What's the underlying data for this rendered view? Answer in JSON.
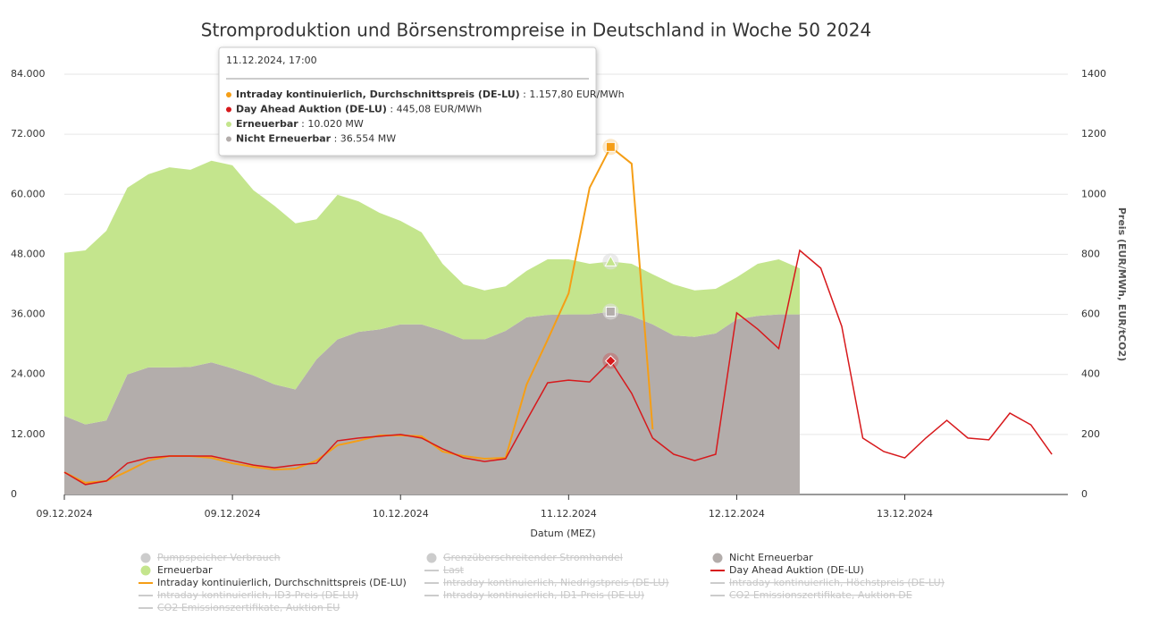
{
  "chart_data": {
    "type": "stacked-area-line",
    "title": "Stromproduktion und Börsenstrompreise in Deutschland in Woche 50 2024",
    "x_label": "Datum (MEZ)",
    "y2_label": "Preis (EUR/MWh, EUR/tCO2)",
    "x": [
      0,
      0.125,
      0.25,
      0.375,
      0.5,
      0.625,
      0.75,
      0.875,
      1,
      1.125,
      1.25,
      1.375,
      1.5,
      1.625,
      1.75,
      1.875,
      2,
      2.125,
      2.25,
      2.375,
      2.5,
      2.625,
      2.75,
      2.875,
      3,
      3.125,
      3.25,
      3.375,
      3.5,
      3.625,
      3.75,
      3.875,
      4,
      4.125,
      4.25,
      4.375,
      4.5,
      4.625,
      4.75,
      4.875,
      5,
      5.125,
      5.25,
      5.375,
      5.5,
      5.625,
      5.75,
      5.875
    ],
    "xlim": [
      0,
      5.97
    ],
    "xticks": [
      {
        "value": 0,
        "label": "09.12.2024"
      },
      {
        "value": 1,
        "label": "09.12.2024"
      },
      {
        "value": 2,
        "label": "10.12.2024"
      },
      {
        "value": 3,
        "label": "11.12.2024"
      },
      {
        "value": 4,
        "label": "12.12.2024"
      },
      {
        "value": 5,
        "label": "13.12.2024"
      }
    ],
    "ylim": [
      0,
      84000
    ],
    "yticks": [
      {
        "value": 0,
        "label": "0"
      },
      {
        "value": 12000,
        "label": "12.000"
      },
      {
        "value": 24000,
        "label": "24.000"
      },
      {
        "value": 36000,
        "label": "36.000"
      },
      {
        "value": 48000,
        "label": "48.000"
      },
      {
        "value": 60000,
        "label": "60.000"
      },
      {
        "value": 72000,
        "label": "72.000"
      },
      {
        "value": 84000,
        "label": "84.000"
      }
    ],
    "y2lim": [
      0,
      1400
    ],
    "y2ticks": [
      0,
      200,
      400,
      600,
      800,
      1000,
      1200,
      1400
    ],
    "grid": true,
    "series": [
      {
        "name": "Nicht Erneuerbar",
        "color": "#b3adab",
        "stack": true,
        "values": [
          15700,
          14000,
          14800,
          24000,
          25400,
          25400,
          25500,
          26400,
          25200,
          23800,
          22000,
          21000,
          27000,
          31000,
          32500,
          33000,
          34000,
          34000,
          32700,
          31000,
          31000,
          32700,
          35400,
          35900,
          36000,
          36000,
          36554,
          35700,
          34000,
          31800,
          31500,
          32200,
          35000,
          35700,
          36000,
          36000,
          null,
          null,
          null,
          null,
          null,
          null,
          null,
          null,
          null,
          null,
          null,
          null
        ]
      },
      {
        "name": "Erneuerbar",
        "color": "#c4e58d",
        "stack": true,
        "values": [
          32600,
          34800,
          37900,
          37300,
          38600,
          40000,
          39400,
          40300,
          40600,
          37000,
          35700,
          33200,
          28000,
          28900,
          26100,
          23300,
          20700,
          18400,
          13400,
          11000,
          9800,
          8900,
          9300,
          11100,
          11000,
          10100,
          10020,
          10400,
          10000,
          10200,
          9300,
          8900,
          8400,
          10400,
          11000,
          9200,
          null,
          null,
          null,
          null,
          null,
          null,
          null,
          null,
          null,
          null,
          null,
          null
        ]
      },
      {
        "name": "Intraday kontinuierlich, Durchschnittspreis (DE-LU)",
        "color": "#f59e16",
        "axis": "y2",
        "values": [
          74,
          39,
          45,
          77,
          113,
          128,
          128,
          122,
          104,
          92,
          83,
          86,
          113,
          164,
          179,
          197,
          197,
          194,
          143,
          128,
          119,
          122,
          366,
          515,
          670,
          1022,
          1157.8,
          1102,
          217,
          null,
          null,
          null,
          null,
          null,
          null,
          null,
          null,
          null,
          null,
          null,
          null,
          null,
          null,
          null,
          null,
          null,
          null,
          null
        ]
      },
      {
        "name": "Day Ahead Auktion (DE-LU)",
        "color": "#d7191c",
        "axis": "y2",
        "values": [
          74,
          33,
          45,
          104,
          122,
          128,
          128,
          128,
          113,
          98,
          89,
          98,
          104,
          179,
          188,
          194,
          200,
          188,
          152,
          122,
          110,
          119,
          247,
          372,
          381,
          375,
          445.08,
          337,
          188,
          134,
          113,
          134,
          605,
          551,
          486,
          813,
          754,
          560,
          188,
          143,
          122,
          188,
          247,
          188,
          182,
          271,
          232,
          134
        ]
      }
    ],
    "hidden_series": [
      {
        "name": "Pumpspeicher Verbrauch",
        "symbol": "circle"
      },
      {
        "name": "Grenzüberschreitender Stromhandel",
        "symbol": "circle"
      },
      {
        "name": "Last",
        "symbol": "line"
      },
      {
        "name": "Intraday kontinuierlich, Niedrigstpreis (DE-LU)",
        "symbol": "line"
      },
      {
        "name": "Intraday kontinuierlich, Höchstpreis (DE-LU)",
        "symbol": "line"
      },
      {
        "name": "Intraday kontinuierlich, ID3-Preis (DE-LU)",
        "symbol": "line"
      },
      {
        "name": "Intraday kontinuierlich, ID1-Preis (DE-LU)",
        "symbol": "line"
      },
      {
        "name": "CO2 Emissionszertifikate, Auktion DE",
        "symbol": "line"
      },
      {
        "name": "CO2 Emissionszertifikate, Auktion EU",
        "symbol": "line"
      }
    ],
    "tooltip": {
      "title": "11.12.2024, 17:00",
      "value_labels": [
        "1.157,80 EUR/MWh",
        "445,08 EUR/MWh",
        "10.020 MW",
        "36.554 MW"
      ]
    }
  }
}
